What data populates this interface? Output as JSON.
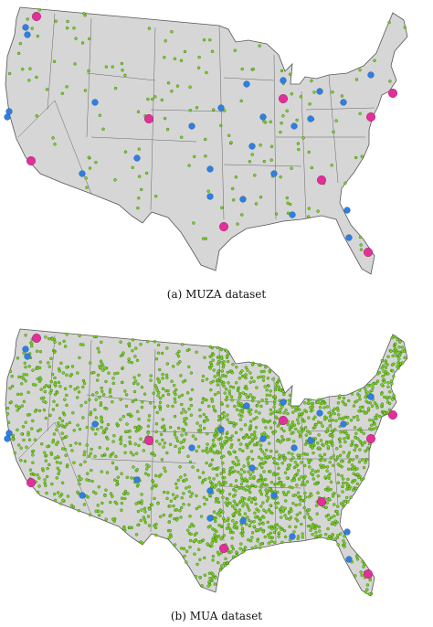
{
  "panels": [
    {
      "caption": "(a) MUZA dataset"
    },
    {
      "caption": "(b) MUA dataset"
    }
  ]
}
